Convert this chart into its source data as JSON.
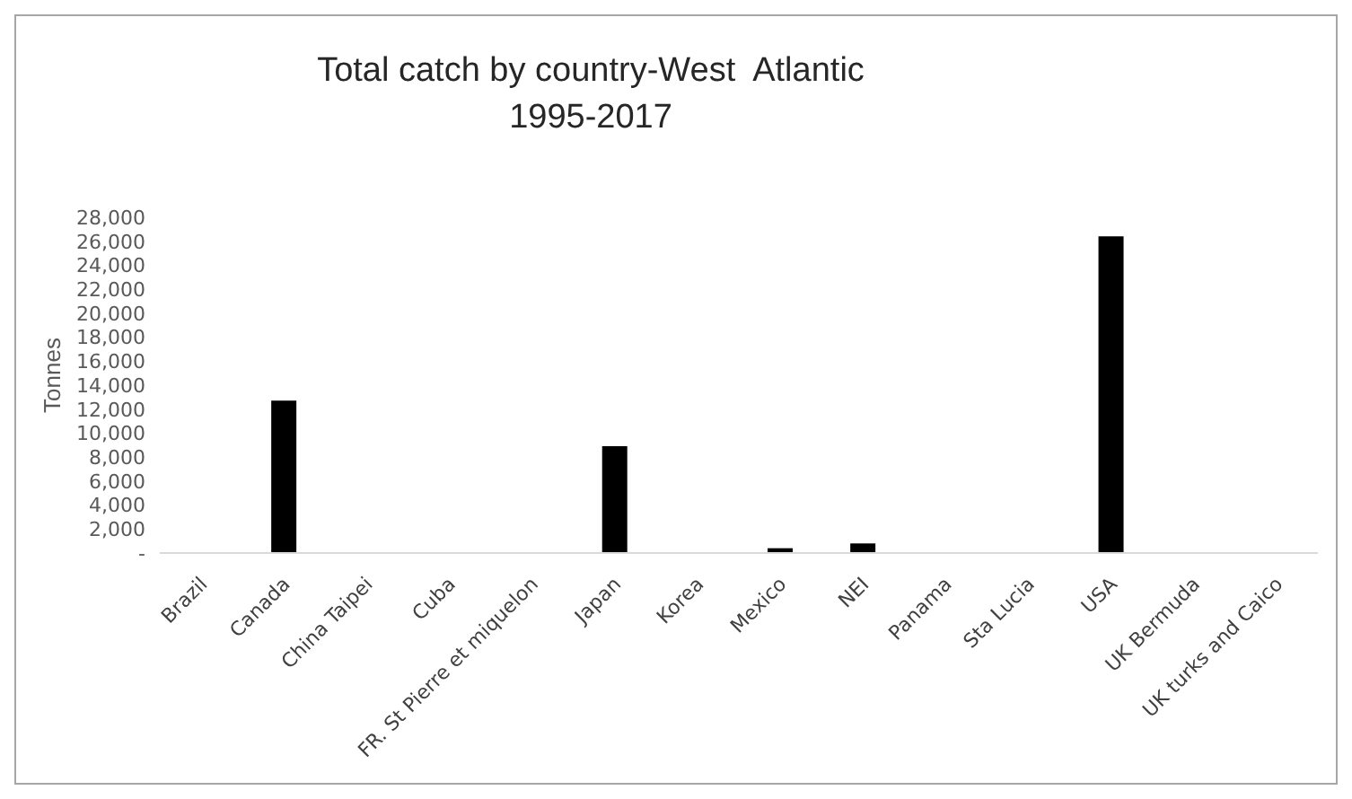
{
  "chart_data": {
    "type": "bar",
    "title": "Total catch by country-West  Atlantic\n1995-2017",
    "ylabel": "Tonnes",
    "categories": [
      "Brazil",
      "Canada",
      "China Taipei",
      "Cuba",
      "FR. St Pierre et miquelon",
      "Japan",
      "Korea",
      "Mexico",
      "NEI",
      "Panama",
      "Sta Lucia",
      "USA",
      "UK Bermuda",
      "UK turks and Caico"
    ],
    "values": [
      0,
      12700,
      0,
      0,
      0,
      8900,
      0,
      400,
      800,
      0,
      0,
      26400,
      0,
      0
    ],
    "color": "#000000",
    "ylim": [
      0,
      28000
    ],
    "yticks": [
      {
        "value": 0,
        "label": "-"
      },
      {
        "value": 2000,
        "label": "2,000"
      },
      {
        "value": 4000,
        "label": "4,000"
      },
      {
        "value": 6000,
        "label": "6,000"
      },
      {
        "value": 8000,
        "label": "8,000"
      },
      {
        "value": 10000,
        "label": "10,000"
      },
      {
        "value": 12000,
        "label": "12,000"
      },
      {
        "value": 14000,
        "label": "14,000"
      },
      {
        "value": 16000,
        "label": "16,000"
      },
      {
        "value": 18000,
        "label": "18,000"
      },
      {
        "value": 20000,
        "label": "20,000"
      },
      {
        "value": 22000,
        "label": "22,000"
      },
      {
        "value": 24000,
        "label": "24,000"
      },
      {
        "value": 26000,
        "label": "26,000"
      },
      {
        "value": 28000,
        "label": "28,000"
      }
    ],
    "grid": false,
    "legend": false
  }
}
